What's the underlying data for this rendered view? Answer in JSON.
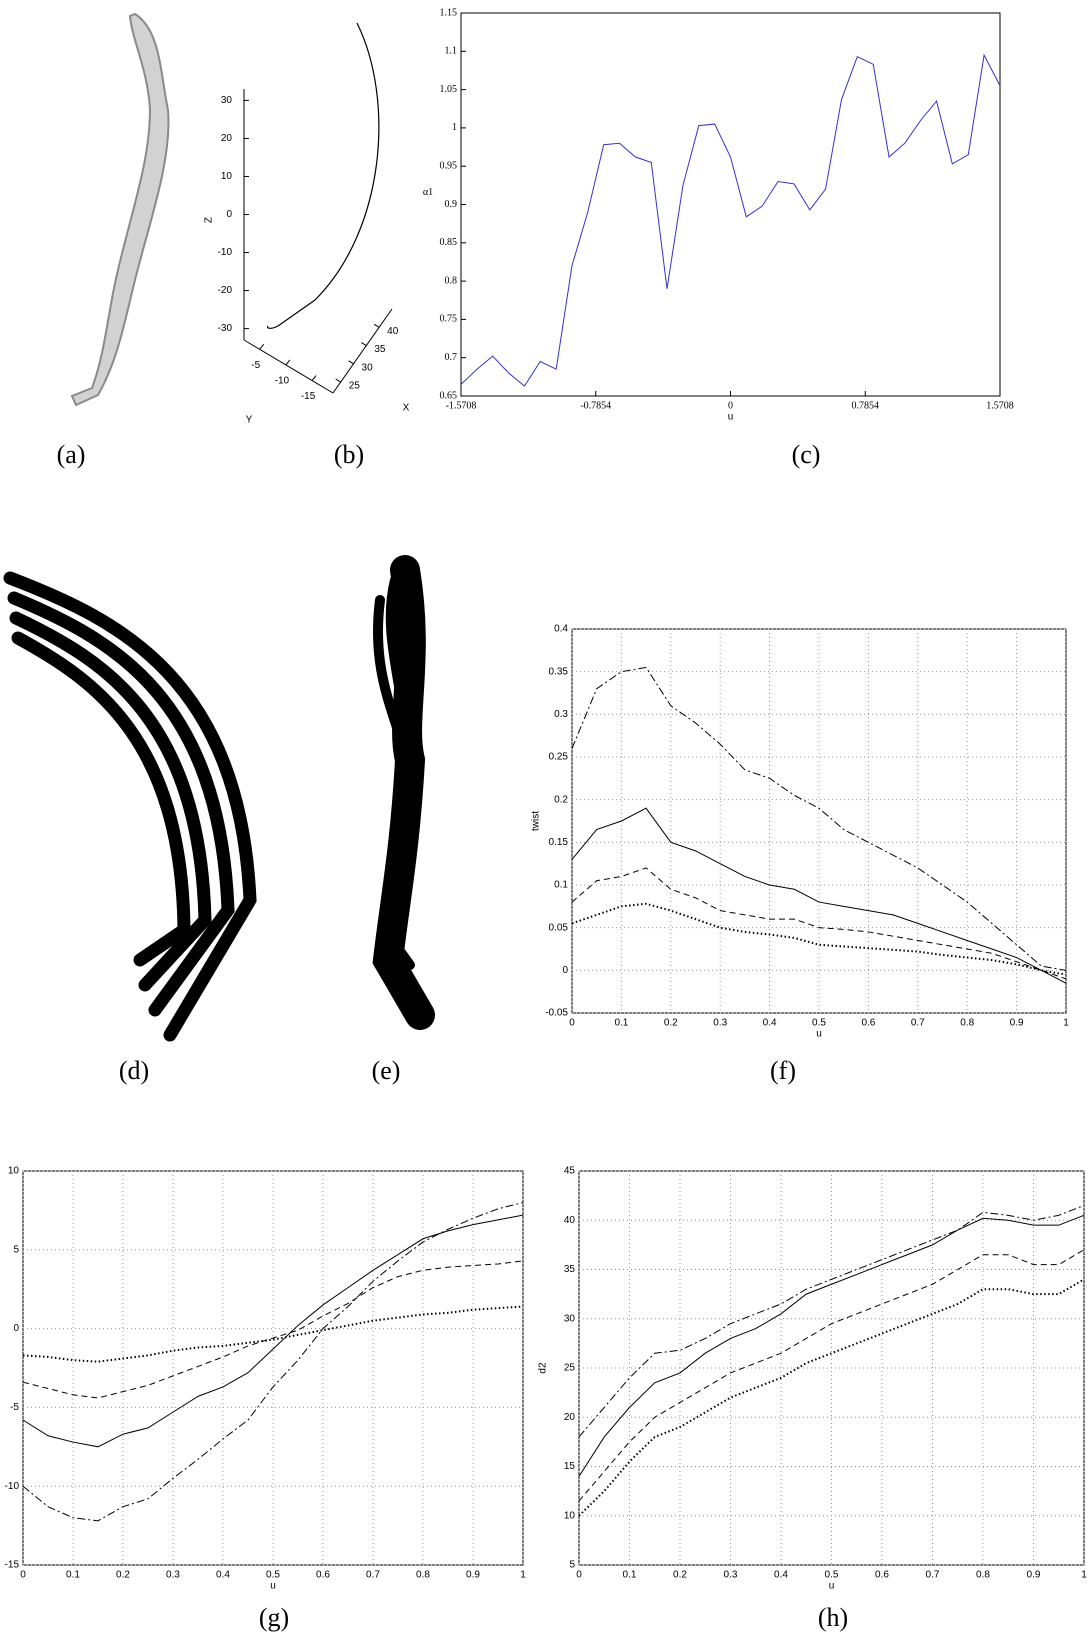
{
  "chart_data": [
    {
      "type": "line3d",
      "xlabel": "X",
      "ylabel": "Y",
      "zlabel": "Z",
      "xlim": [
        22,
        45
      ],
      "ylim": [
        -2,
        -19
      ],
      "zlim": [
        -33,
        33
      ],
      "xticks": [
        25,
        30,
        35,
        40
      ],
      "yticks": [
        -5,
        -10,
        -15
      ],
      "zticks": [
        30,
        20,
        10,
        0,
        -10,
        -20,
        -30
      ]
    },
    {
      "type": "line",
      "xlabel": "u",
      "ylabel": "α1",
      "color": "#3333cc",
      "grid": false,
      "xlim": [
        -1.5708,
        1.5708
      ],
      "ylim": [
        0.65,
        1.15
      ],
      "xticks": [
        -1.5708,
        -0.7854,
        0,
        0.7854,
        1.5708
      ],
      "yticks": [
        0.65,
        0.7,
        0.75,
        0.8,
        0.85,
        0.9,
        0.95,
        1,
        1.05,
        1.1,
        1.15
      ],
      "x": [
        -1.571,
        -1.478,
        -1.386,
        -1.293,
        -1.201,
        -1.109,
        -1.016,
        -0.924,
        -0.832,
        -0.739,
        -0.647,
        -0.554,
        -0.462,
        -0.37,
        -0.277,
        -0.185,
        -0.092,
        0,
        0.092,
        0.185,
        0.277,
        0.37,
        0.462,
        0.554,
        0.647,
        0.739,
        0.832,
        0.924,
        1.016,
        1.109,
        1.201,
        1.293,
        1.386,
        1.478,
        1.571
      ],
      "values": [
        0.665,
        0.685,
        0.702,
        0.68,
        0.663,
        0.695,
        0.685,
        0.82,
        0.89,
        0.978,
        0.98,
        0.962,
        0.955,
        0.79,
        0.925,
        1.003,
        1.005,
        0.962,
        0.884,
        0.898,
        0.93,
        0.927,
        0.893,
        0.92,
        1.037,
        1.093,
        1.083,
        0.962,
        0.98,
        1.01,
        1.035,
        0.953,
        0.965,
        1.095,
        1.055
      ]
    },
    {
      "type": "line",
      "xlabel": "u",
      "ylabel": "twist",
      "grid": true,
      "color": "#000000",
      "xlim": [
        0,
        1
      ],
      "ylim": [
        -0.05,
        0.4
      ],
      "xticks": [
        0,
        0.1,
        0.2,
        0.3,
        0.4,
        0.5,
        0.6,
        0.7,
        0.8,
        0.9,
        1
      ],
      "yticks": [
        -0.05,
        0,
        0.05,
        0.1,
        0.15,
        0.2,
        0.25,
        0.3,
        0.35,
        0.4
      ],
      "x": [
        0,
        0.05,
        0.1,
        0.15,
        0.2,
        0.25,
        0.3,
        0.35,
        0.4,
        0.45,
        0.5,
        0.55,
        0.6,
        0.65,
        0.7,
        0.75,
        0.8,
        0.85,
        0.9,
        0.95,
        1
      ],
      "series": [
        {
          "style": "dashdot",
          "values": [
            0.26,
            0.33,
            0.35,
            0.355,
            0.31,
            0.29,
            0.265,
            0.235,
            0.225,
            0.205,
            0.19,
            0.165,
            0.15,
            0.135,
            0.12,
            0.1,
            0.08,
            0.055,
            0.03,
            0.005,
            0
          ]
        },
        {
          "style": "solid",
          "values": [
            0.13,
            0.165,
            0.175,
            0.19,
            0.15,
            0.14,
            0.125,
            0.11,
            0.1,
            0.095,
            0.08,
            0.075,
            0.07,
            0.065,
            0.055,
            0.045,
            0.035,
            0.025,
            0.015,
            0,
            -0.015
          ]
        },
        {
          "style": "dashed",
          "values": [
            0.08,
            0.105,
            0.11,
            0.12,
            0.095,
            0.085,
            0.07,
            0.065,
            0.06,
            0.06,
            0.05,
            0.048,
            0.045,
            0.04,
            0.035,
            0.03,
            0.025,
            0.02,
            0.01,
            0,
            -0.01
          ]
        },
        {
          "style": "dotted",
          "values": [
            0.055,
            0.065,
            0.075,
            0.078,
            0.07,
            0.06,
            0.05,
            0.045,
            0.042,
            0.038,
            0.03,
            0.028,
            0.026,
            0.024,
            0.022,
            0.018,
            0.015,
            0.012,
            0.007,
            0,
            -0.005
          ]
        }
      ]
    },
    {
      "type": "line",
      "xlabel": "u",
      "grid": true,
      "color": "#000000",
      "xlim": [
        0,
        1
      ],
      "ylim": [
        -15,
        10
      ],
      "xticks": [
        0,
        0.1,
        0.2,
        0.3,
        0.4,
        0.5,
        0.6,
        0.7,
        0.8,
        0.9,
        1
      ],
      "yticks": [
        -15,
        -10,
        -5,
        0,
        5,
        10
      ],
      "x": [
        0,
        0.05,
        0.1,
        0.15,
        0.2,
        0.25,
        0.3,
        0.35,
        0.4,
        0.45,
        0.5,
        0.55,
        0.6,
        0.65,
        0.7,
        0.75,
        0.8,
        0.85,
        0.9,
        0.95,
        1
      ],
      "series": [
        {
          "style": "solid",
          "values": [
            -5.8,
            -6.8,
            -7.2,
            -7.5,
            -6.7,
            -6.3,
            -5.3,
            -4.3,
            -3.7,
            -2.8,
            -1.3,
            0.2,
            1.5,
            2.6,
            3.7,
            4.7,
            5.7,
            6.2,
            6.6,
            6.9,
            7.2
          ]
        },
        {
          "style": "dashdot",
          "values": [
            -10,
            -11.3,
            -12,
            -12.2,
            -11.3,
            -10.8,
            -9.5,
            -8.3,
            -7,
            -5.8,
            -3.7,
            -2,
            0,
            1.4,
            3,
            4.3,
            5.5,
            6.3,
            7,
            7.6,
            8
          ]
        },
        {
          "style": "dashed",
          "values": [
            -3.4,
            -3.8,
            -4.2,
            -4.4,
            -4,
            -3.6,
            -3,
            -2.4,
            -1.8,
            -1.1,
            -0.6,
            -0.1,
            0.8,
            1.6,
            2.6,
            3.3,
            3.7,
            3.9,
            4,
            4.1,
            4.3
          ]
        },
        {
          "style": "dotted",
          "values": [
            -1.7,
            -1.8,
            -2,
            -2.1,
            -1.9,
            -1.7,
            -1.4,
            -1.2,
            -1.1,
            -0.9,
            -0.7,
            -0.4,
            -0.1,
            0.2,
            0.5,
            0.7,
            0.9,
            1,
            1.2,
            1.3,
            1.4
          ]
        }
      ]
    },
    {
      "type": "line",
      "xlabel": "u",
      "ylabel": "d2",
      "grid": true,
      "color": "#000000",
      "xlim": [
        0,
        1
      ],
      "ylim": [
        5,
        45
      ],
      "xticks": [
        0,
        0.1,
        0.2,
        0.3,
        0.4,
        0.5,
        0.6,
        0.7,
        0.8,
        0.9,
        1
      ],
      "yticks": [
        5,
        10,
        15,
        20,
        25,
        30,
        35,
        40,
        45
      ],
      "x": [
        0,
        0.05,
        0.1,
        0.15,
        0.2,
        0.25,
        0.3,
        0.35,
        0.4,
        0.45,
        0.5,
        0.55,
        0.6,
        0.65,
        0.7,
        0.75,
        0.8,
        0.85,
        0.9,
        0.95,
        1
      ],
      "series": [
        {
          "style": "dashdot",
          "values": [
            18,
            21,
            24,
            26.5,
            26.8,
            28,
            29.5,
            30.5,
            31.5,
            33,
            34,
            35,
            36,
            37,
            38,
            39,
            40.8,
            40.5,
            40,
            40.5,
            41.5
          ]
        },
        {
          "style": "solid",
          "values": [
            14,
            18,
            21,
            23.5,
            24.5,
            26.5,
            28,
            29,
            30.5,
            32.5,
            33.5,
            34.5,
            35.5,
            36.5,
            37.5,
            39,
            40.2,
            40,
            39.5,
            39.5,
            40.5
          ]
        },
        {
          "style": "dashed",
          "values": [
            11.5,
            14.5,
            17.5,
            20,
            21.5,
            23,
            24.5,
            25.5,
            26.5,
            28,
            29.5,
            30.5,
            31.5,
            32.5,
            33.5,
            35,
            36.5,
            36.5,
            35.5,
            35.5,
            37
          ]
        },
        {
          "style": "dotted",
          "values": [
            10,
            12.5,
            15.5,
            18,
            19,
            20.5,
            22,
            23,
            24,
            25.5,
            26.5,
            27.5,
            28.5,
            29.5,
            30.5,
            31.5,
            33,
            33,
            32.5,
            32.5,
            34
          ]
        }
      ]
    }
  ],
  "captions": [
    "(a)",
    "(b)",
    "(c)",
    "(d)",
    "(e)",
    "(f)",
    "(g)",
    "(h)"
  ]
}
